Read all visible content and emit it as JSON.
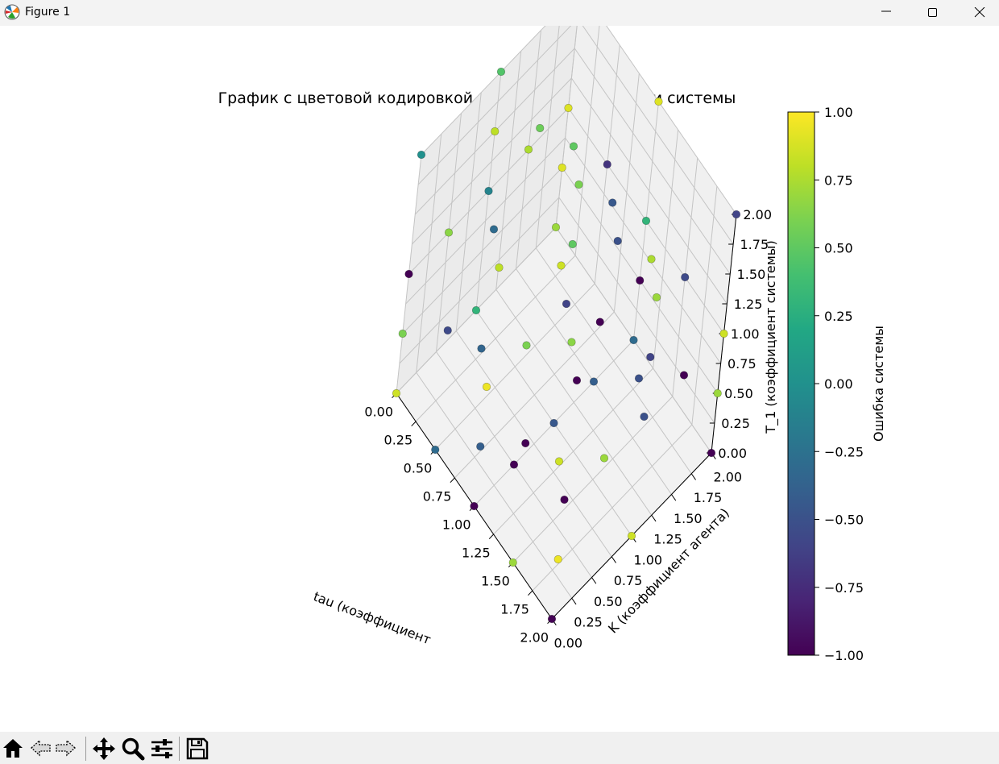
{
  "window": {
    "title": "Figure 1",
    "controls": [
      "minimize",
      "maximize",
      "close"
    ]
  },
  "toolbar": {
    "buttons": [
      {
        "name": "home-button",
        "icon": "home-icon"
      },
      {
        "name": "back-button",
        "icon": "back-arrow-icon"
      },
      {
        "name": "forward-button",
        "icon": "forward-arrow-icon"
      },
      {
        "name": "pan-button",
        "icon": "move-icon"
      },
      {
        "name": "zoom-button",
        "icon": "magnifier-icon"
      },
      {
        "name": "configure-subplots-button",
        "icon": "sliders-icon"
      },
      {
        "name": "save-button",
        "icon": "floppy-disk-icon"
      }
    ]
  },
  "chart_data": {
    "type": "scatter",
    "projection": "3d",
    "title": "График с цветовой кодировкой максимальной ошибки системы",
    "xlabel": "tau (коэффициент",
    "ylabel": "K (коэффициент агента)",
    "zlabel": "T_1 (коэффициент системы)",
    "xlim": [
      0,
      2
    ],
    "ylim": [
      0,
      2
    ],
    "zlim": [
      0,
      2
    ],
    "xticks": [
      "0.00",
      "0.25",
      "0.50",
      "0.75",
      "1.00",
      "1.25",
      "1.50",
      "1.75",
      "2.00"
    ],
    "yticks": [
      "0.00",
      "0.25",
      "0.50",
      "0.75",
      "1.00",
      "1.25",
      "1.50",
      "1.75",
      "2.00"
    ],
    "zticks": [
      "0.00",
      "0.25",
      "0.50",
      "0.75",
      "1.00",
      "1.25",
      "1.50",
      "1.75",
      "2.00"
    ],
    "grid": true,
    "colormap": "viridis",
    "colorbar": {
      "label": "Ошибка системы",
      "range": [
        -1,
        1
      ],
      "ticks": [
        "1.00",
        "0.75",
        "0.50",
        "0.25",
        "0.00",
        "−0.25",
        "−0.50",
        "−0.75",
        "−1.00"
      ]
    },
    "points": [
      {
        "x": 0,
        "y": 0,
        "z": 0,
        "c": 0.85
      },
      {
        "x": 0,
        "y": 0,
        "z": 1,
        "c": -1.0
      },
      {
        "x": 0,
        "y": 0,
        "z": 2,
        "c": 0.0
      },
      {
        "x": 0,
        "y": 1,
        "z": 0,
        "c": 0.3
      },
      {
        "x": 0,
        "y": 1,
        "z": 1,
        "c": -0.1
      },
      {
        "x": 0,
        "y": 1,
        "z": 2,
        "c": 0.45
      },
      {
        "x": 0,
        "y": 2,
        "z": 0,
        "c": 0.7
      },
      {
        "x": 0,
        "y": 2,
        "z": 1,
        "c": 0.9
      },
      {
        "x": 0,
        "y": 2,
        "z": 2,
        "c": -1.0
      },
      {
        "x": 1,
        "y": 0,
        "z": 0,
        "c": -1.0
      },
      {
        "x": 1,
        "y": 0,
        "z": 1,
        "c": 0.95
      },
      {
        "x": 1,
        "y": 0,
        "z": 2,
        "c": 0.8
      },
      {
        "x": 1,
        "y": 1,
        "z": 0,
        "c": -0.45
      },
      {
        "x": 1,
        "y": 1,
        "z": 1,
        "c": -0.6
      },
      {
        "x": 1,
        "y": 1,
        "z": 2,
        "c": 0.6
      },
      {
        "x": 1,
        "y": 2,
        "z": 0,
        "c": -0.3
      },
      {
        "x": 1,
        "y": 2,
        "z": 1,
        "c": 0.3
      },
      {
        "x": 1,
        "y": 2,
        "z": 2,
        "c": 0.9
      },
      {
        "x": 2,
        "y": 0,
        "z": 0,
        "c": -1.0
      },
      {
        "x": 2,
        "y": 0,
        "z": 1,
        "c": -1.0
      },
      {
        "x": 2,
        "y": 0,
        "z": 2,
        "c": -1.0
      },
      {
        "x": 2,
        "y": 1,
        "z": 0,
        "c": 0.85
      },
      {
        "x": 2,
        "y": 1,
        "z": 1,
        "c": -0.5
      },
      {
        "x": 2,
        "y": 1,
        "z": 2,
        "c": 0.7
      },
      {
        "x": 2,
        "y": 2,
        "z": 0,
        "c": -1.0
      },
      {
        "x": 2,
        "y": 2,
        "z": 1,
        "c": 0.85
      },
      {
        "x": 2,
        "y": 2,
        "z": 2,
        "c": -0.6
      },
      {
        "x": 0,
        "y": 0,
        "z": 0.5,
        "c": 0.6
      },
      {
        "x": 0,
        "y": 2,
        "z": 0.5,
        "c": 0.9
      },
      {
        "x": 2,
        "y": 0,
        "z": 0.5,
        "c": 0.95
      },
      {
        "x": 2,
        "y": 2,
        "z": 0.5,
        "c": 0.7
      },
      {
        "x": 1,
        "y": 0,
        "z": 0.5,
        "c": -0.4
      },
      {
        "x": 1,
        "y": 2,
        "z": 0.5,
        "c": -1.0
      },
      {
        "x": 0,
        "y": 1,
        "z": 1.5,
        "c": 0.8
      },
      {
        "x": 2,
        "y": 1,
        "z": 1.5,
        "c": -0.6
      },
      {
        "x": 0.5,
        "y": 0,
        "z": 0,
        "c": -0.3
      },
      {
        "x": 0.5,
        "y": 0,
        "z": 1,
        "c": -0.55
      },
      {
        "x": 1.5,
        "y": 0,
        "z": 0,
        "c": 0.7
      },
      {
        "x": 1.5,
        "y": 0,
        "z": 1,
        "c": -1.0
      },
      {
        "x": 0.5,
        "y": 2,
        "z": 1,
        "c": -0.7
      },
      {
        "x": 1.5,
        "y": 2,
        "z": 1,
        "c": -0.55
      },
      {
        "x": 0.5,
        "y": 1,
        "z": 2,
        "c": 0.55
      },
      {
        "x": 1.5,
        "y": 1,
        "z": 2,
        "c": -0.5
      },
      {
        "x": 0,
        "y": 0.5,
        "z": 1,
        "c": 0.65
      },
      {
        "x": 0,
        "y": 1.5,
        "z": 1,
        "c": 0.75
      },
      {
        "x": 2,
        "y": 0.5,
        "z": 1,
        "c": 0.7
      },
      {
        "x": 2,
        "y": 1.5,
        "z": 1,
        "c": -1.0
      },
      {
        "x": 1,
        "y": 0.5,
        "z": 0,
        "c": -1.0
      },
      {
        "x": 1,
        "y": 1.5,
        "z": 0,
        "c": -0.4
      },
      {
        "x": 0.5,
        "y": 0.5,
        "z": 0.5,
        "c": -0.35
      },
      {
        "x": 1.5,
        "y": 1.5,
        "z": 1.5,
        "c": 0.75
      },
      {
        "x": 0.5,
        "y": 1.5,
        "z": 0.5,
        "c": 0.85
      },
      {
        "x": 1.5,
        "y": 0.5,
        "z": 1.5,
        "c": 0.65
      },
      {
        "x": 1,
        "y": 1,
        "z": 1.5,
        "c": 0.5
      },
      {
        "x": 1,
        "y": 1.5,
        "z": 1.5,
        "c": -0.45
      },
      {
        "x": 0.5,
        "y": 0.5,
        "z": 1.5,
        "c": -0.3
      },
      {
        "x": 1.5,
        "y": 1.5,
        "z": 0.5,
        "c": -0.5
      },
      {
        "x": 0.5,
        "y": 1.5,
        "z": 1.5,
        "c": 0.5
      },
      {
        "x": 1.5,
        "y": 0.5,
        "z": 0.5,
        "c": 0.85
      },
      {
        "x": 1,
        "y": 0.5,
        "z": 1,
        "c": 0.6
      },
      {
        "x": 1,
        "y": 1.5,
        "z": 0.5,
        "c": -1.0
      }
    ]
  }
}
